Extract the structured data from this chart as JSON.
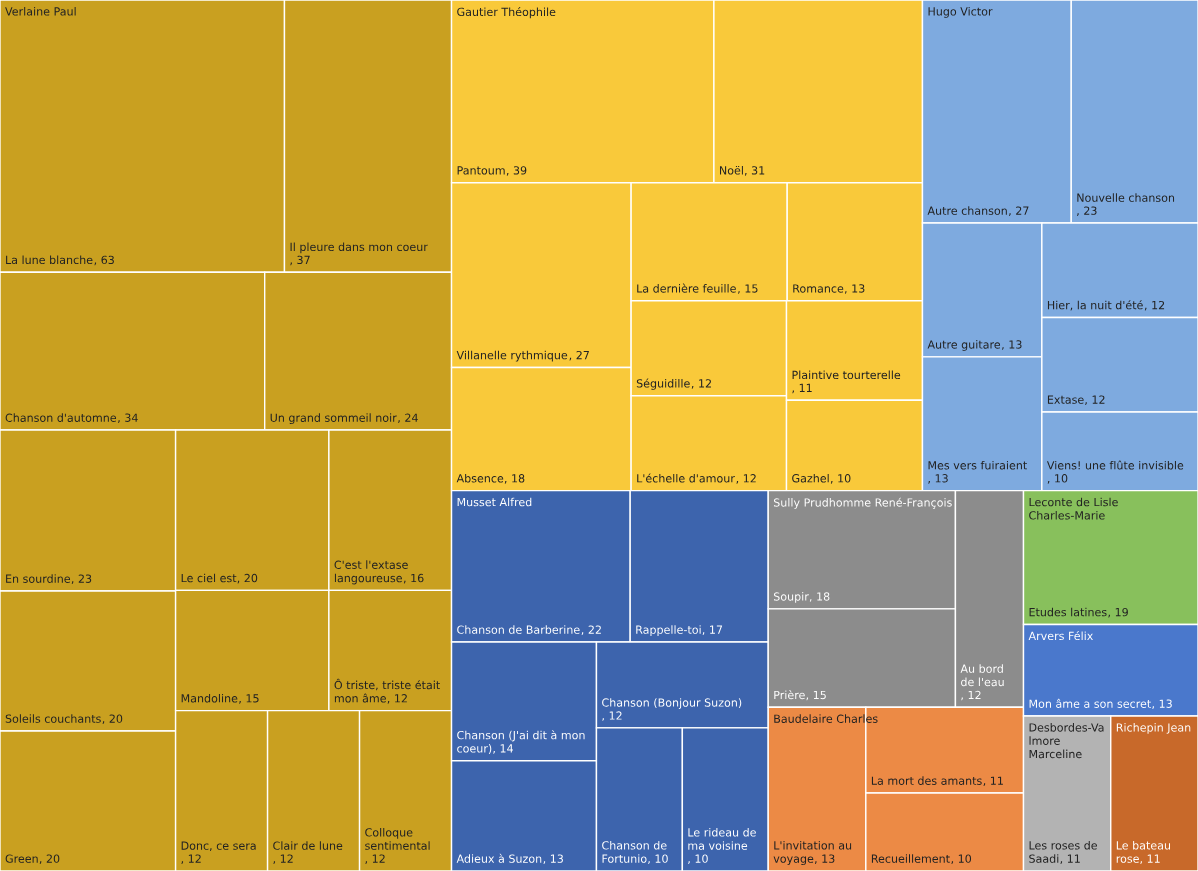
{
  "chart_data": {
    "type": "other",
    "annotations": [
      "Verlaine Paul",
      "Gautier Théophile",
      "Hugo Victor",
      "Musset Alfred",
      "Sully Prudhomme René-François",
      "Baudelaire Charles",
      "Leconte de Lisle Charles-Marie",
      "Arvers Félix",
      "Desbordes-Valmore Marceline",
      "Richepin Jean"
    ],
    "categories": [
      "La lune blanche",
      "Il pleure dans mon coeur",
      "Chanson d'automne",
      "Un grand sommeil noir",
      "En sourdine",
      "Soleils couchants",
      "Green",
      "Le ciel est",
      "C'est l'extase langoureuse",
      "Mandoline",
      "Ô triste, triste était mon âme",
      "Donc, ce sera",
      "Clair de lune",
      "Colloque sentimental",
      "Pantoum",
      "Noël",
      "Villanelle rythmique",
      "Absence",
      "La dernière feuille",
      "Romance",
      "Séguidille",
      "L'échelle d'amour",
      "Plaintive tourterelle",
      "Gazhel",
      "Autre chanson",
      "Nouvelle chanson",
      "Autre guitare",
      "Mes vers fuiraient",
      "Hier, la nuit d'été",
      "Extase",
      "Viens! une flûte invisible",
      "Chanson de Barberine",
      "Rappelle-toi",
      "Chanson (J'ai dit à mon coeur)",
      "Adieux à Suzon",
      "Chanson (Bonjour Suzon)",
      "Chanson de Fortunio",
      "Le rideau de ma voisine",
      "Soupir",
      "Prière",
      "Au bord de l'eau",
      "L'invitation au voyage",
      "La mort des amants",
      "Recueillement",
      "Etudes latines",
      "Mon âme a son secret",
      "Les roses de Saadi",
      "Le bateau rose"
    ],
    "values": [
      63,
      37,
      34,
      24,
      23,
      20,
      20,
      20,
      16,
      15,
      12,
      12,
      12,
      12,
      39,
      31,
      27,
      18,
      15,
      13,
      12,
      12,
      11,
      10,
      27,
      23,
      13,
      13,
      12,
      12,
      10,
      22,
      17,
      14,
      13,
      12,
      10,
      10,
      18,
      15,
      12,
      13,
      11,
      10,
      19,
      13,
      11,
      11
    ],
    "value_labels": [
      ", 63",
      ", 37",
      ", 34",
      ", 24",
      ", 23",
      ", 20",
      ", 20",
      ", 20",
      ", 16",
      ", 15",
      ", 12",
      ", 12",
      ", 12",
      ", 12",
      ", 39",
      ", 31",
      ", 27",
      ", 18",
      ", 15",
      ", 13",
      ", 12",
      ", 12",
      ", 11",
      ", 10",
      ", 27",
      ", 23",
      ", 13",
      ", 13",
      ", 12",
      ", 12",
      ", 10",
      ", 22",
      ", 17",
      ", 14",
      ", 13",
      ", 12",
      ", 10",
      ", 10",
      ", 18",
      ", 15",
      ", 12",
      ", 13",
      ", 11",
      ", 10",
      ", 19",
      ", 13",
      ", 11",
      ", 11"
    ],
    "colors": [
      "#c9a020",
      "#c9a020",
      "#c9a020",
      "#c9a020",
      "#c9a020",
      "#c9a020",
      "#c9a020",
      "#c9a020",
      "#c9a020",
      "#c9a020",
      "#c9a020",
      "#c9a020",
      "#c9a020",
      "#c9a020",
      "#f9c93a",
      "#f9c93a",
      "#f9c93a",
      "#f9c93a",
      "#f9c93a",
      "#f9c93a",
      "#f9c93a",
      "#f9c93a",
      "#f9c93a",
      "#f9c93a",
      "#7eaadf",
      "#7eaadf",
      "#7eaadf",
      "#7eaadf",
      "#7eaadf",
      "#7eaadf",
      "#7eaadf",
      "#3d64ad",
      "#3d64ad",
      "#3d64ad",
      "#3d64ad",
      "#3d64ad",
      "#3d64ad",
      "#3d64ad",
      "#8c8c8c",
      "#8c8c8c",
      "#8c8c8c",
      "#ec8a45",
      "#ec8a45",
      "#ec8a45",
      "#88c05c",
      "#4a78cc",
      "#b3b3b3",
      "#c8692a"
    ]
  }
}
